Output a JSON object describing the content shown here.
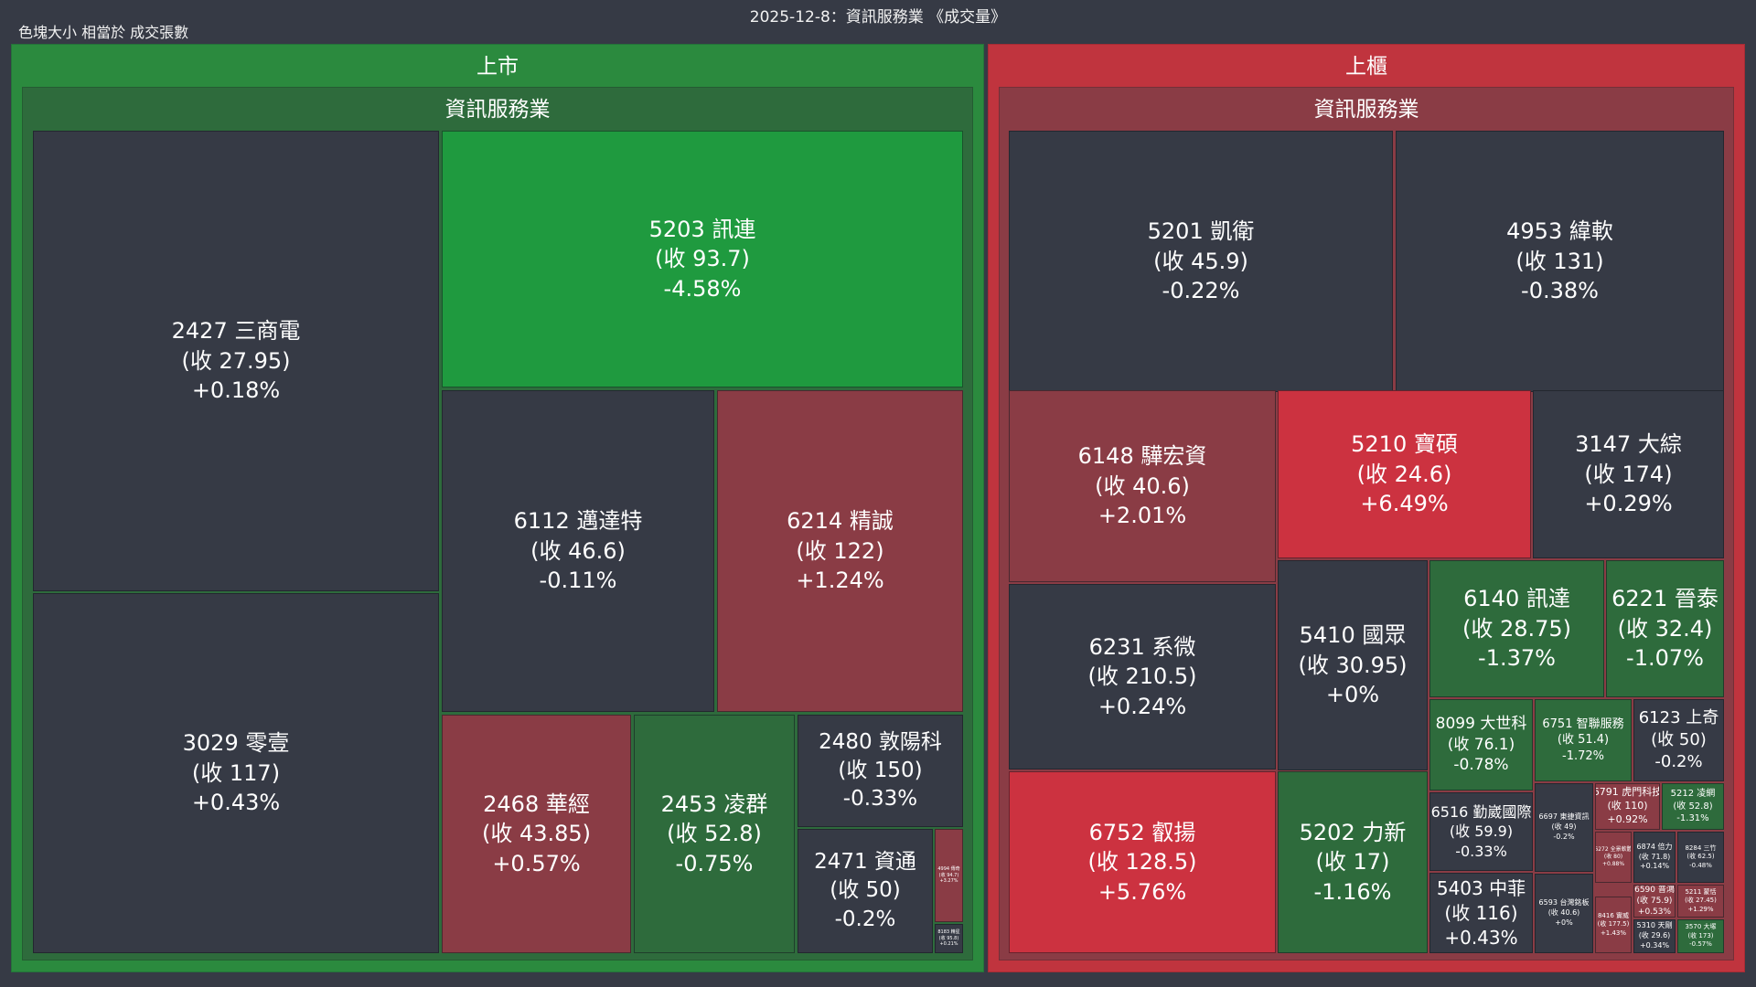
{
  "title": "2025-12-8：資訊服務業 《成交量》",
  "subtitle": "色塊大小 相當於 成交張數",
  "colors": {
    "neutral": "#363a45",
    "up_dark": "#8a3c45",
    "up_bright": "#cc3240",
    "down_dark": "#2e6b3c",
    "down_bright": "#1f9a3f",
    "market_up": "#2b8a3e",
    "market_otc": "#c0343e"
  },
  "chart_data": {
    "type": "treemap",
    "size_metric": "成交張數",
    "markets": [
      {
        "name": "上市",
        "industry": "資訊服務業",
        "stocks": [
          {
            "code": "2427",
            "name": "三商電",
            "close": "27.95",
            "change": "+0.18%"
          },
          {
            "code": "3029",
            "name": "零壹",
            "close": "117",
            "change": "+0.43%"
          },
          {
            "code": "5203",
            "name": "訊連",
            "close": "93.7",
            "change": "-4.58%"
          },
          {
            "code": "6112",
            "name": "邁達特",
            "close": "46.6",
            "change": "-0.11%"
          },
          {
            "code": "6214",
            "name": "精誠",
            "close": "122",
            "change": "+1.24%"
          },
          {
            "code": "2468",
            "name": "華經",
            "close": "43.85",
            "change": "+0.57%"
          },
          {
            "code": "2453",
            "name": "凌群",
            "close": "52.8",
            "change": "-0.75%"
          },
          {
            "code": "2480",
            "name": "敦陽科",
            "close": "150",
            "change": "-0.33%"
          },
          {
            "code": "2471",
            "name": "資通",
            "close": "50",
            "change": "-0.2%"
          },
          {
            "code": "4994",
            "name": "傳奇",
            "close": "94.7",
            "change": "+3.27%"
          },
          {
            "code": "8183",
            "name": "精星",
            "close": "95.8",
            "change": "+0.21%"
          }
        ]
      },
      {
        "name": "上櫃",
        "industry": "資訊服務業",
        "stocks": [
          {
            "code": "5201",
            "name": "凱衛",
            "close": "45.9",
            "change": "-0.22%"
          },
          {
            "code": "4953",
            "name": "緯軟",
            "close": "131",
            "change": "-0.38%"
          },
          {
            "code": "6148",
            "name": "驊宏資",
            "close": "40.6",
            "change": "+2.01%"
          },
          {
            "code": "5210",
            "name": "寶碩",
            "close": "24.6",
            "change": "+6.49%"
          },
          {
            "code": "3147",
            "name": "大綜",
            "close": "174",
            "change": "+0.29%"
          },
          {
            "code": "6231",
            "name": "系微",
            "close": "210.5",
            "change": "+0.24%"
          },
          {
            "code": "5410",
            "name": "國眾",
            "close": "30.95",
            "change": "+0%"
          },
          {
            "code": "6140",
            "name": "訊達",
            "close": "28.75",
            "change": "-1.37%"
          },
          {
            "code": "6221",
            "name": "晉泰",
            "close": "32.4",
            "change": "-1.07%"
          },
          {
            "code": "8099",
            "name": "大世科",
            "close": "76.1",
            "change": "-0.78%"
          },
          {
            "code": "6751",
            "name": "智聯服務",
            "close": "51.4",
            "change": "-1.72%"
          },
          {
            "code": "6123",
            "name": "上奇",
            "close": "50",
            "change": "-0.2%"
          },
          {
            "code": "6752",
            "name": "叡揚",
            "close": "128.5",
            "change": "+5.76%"
          },
          {
            "code": "5202",
            "name": "力新",
            "close": "17",
            "change": "-1.16%"
          },
          {
            "code": "6516",
            "name": "勤崴國際",
            "close": "59.9",
            "change": "-0.33%"
          },
          {
            "code": "6697",
            "name": "東捷資訊",
            "close": "49",
            "change": "-0.2%"
          },
          {
            "code": "6791",
            "name": "虎門科技",
            "close": "110",
            "change": "+0.92%"
          },
          {
            "code": "5212",
            "name": "凌網",
            "close": "52.8",
            "change": "-1.31%"
          },
          {
            "code": "5403",
            "name": "中菲",
            "close": "116",
            "change": "+0.43%"
          },
          {
            "code": "6593",
            "name": "台灣銘板",
            "close": "40.6",
            "change": "+0%"
          },
          {
            "code": "6272",
            "name": "全景軟體",
            "close": "80",
            "change": "+0.88%"
          },
          {
            "code": "6874",
            "name": "倍力",
            "close": "71.8",
            "change": "+0.14%"
          },
          {
            "code": "8284",
            "name": "三竹",
            "close": "62.5",
            "change": "-0.48%"
          },
          {
            "code": "6590",
            "name": "普鴻",
            "close": "75.9",
            "change": "+0.53%"
          },
          {
            "code": "5211",
            "name": "蒙恬",
            "close": "27.45",
            "change": "+1.29%"
          },
          {
            "code": "8416",
            "name": "實威",
            "close": "177.5",
            "change": "+1.43%"
          },
          {
            "code": "5310",
            "name": "天剛",
            "close": "29.6",
            "change": "+0.34%"
          },
          {
            "code": "3570",
            "name": "大塚",
            "close": "173",
            "change": "-0.57%"
          }
        ]
      }
    ]
  }
}
